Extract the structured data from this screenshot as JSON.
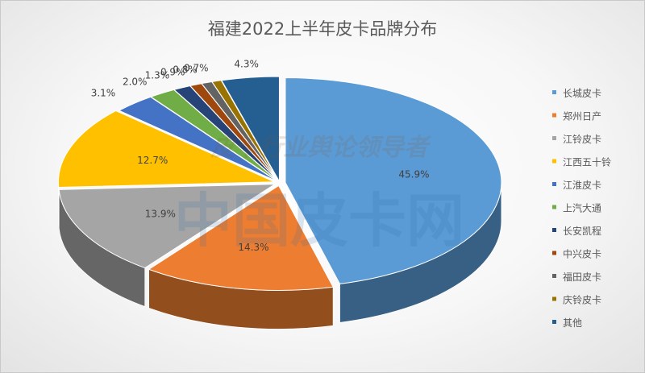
{
  "chart_data": {
    "type": "pie",
    "title": "福建2022上半年皮卡品牌分布",
    "labels": [
      "长城皮卡",
      "郑州日产",
      "江铃皮卡",
      "江西五十铃",
      "江淮皮卡",
      "上汽大通",
      "长安凯程",
      "中兴皮卡",
      "福田皮卡",
      "庆铃皮卡",
      "其他"
    ],
    "values": [
      45.9,
      14.3,
      13.9,
      12.7,
      3.1,
      2.0,
      1.3,
      0.9,
      0.8,
      0.7,
      4.3
    ],
    "value_labels": [
      "45.9%",
      "14.3%",
      "13.9%",
      "12.7%",
      "3.1%",
      "2.0%",
      "1.3%",
      "0.9%",
      "0.8%",
      "0.7%",
      "4.3%"
    ],
    "colors": [
      "#5b9bd5",
      "#ed7d31",
      "#a5a5a5",
      "#ffc000",
      "#4472c4",
      "#70ad47",
      "#264478",
      "#9e480e",
      "#636363",
      "#997300",
      "#255e91"
    ],
    "legend_position": "right",
    "style": "3d-exploded"
  },
  "watermark": {
    "script_text": "皮卡行业舆论领导者",
    "main_text": "中国皮卡网"
  }
}
